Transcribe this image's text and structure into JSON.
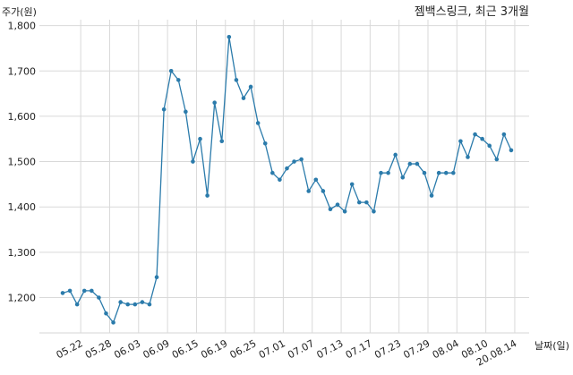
{
  "chart_data": {
    "type": "line",
    "title": "젬백스링크, 최근 3개월",
    "ylabel": "주가(원)",
    "xlabel": "날짜(일)",
    "ylim": [
      1120,
      1800
    ],
    "yticks": [
      1200,
      1300,
      1400,
      1500,
      1600,
      1700,
      1800
    ],
    "ytick_labels": [
      "1,200",
      "1,300",
      "1,400",
      "1,500",
      "1,600",
      "1,700",
      "1,800"
    ],
    "xtick_labels": [
      "05.22",
      "05.28",
      "06.03",
      "06.09",
      "06.15",
      "06.19",
      "06.25",
      "07.01",
      "07.07",
      "07.13",
      "07.17",
      "07.23",
      "07.29",
      "08.04",
      "08.10",
      "20.08.14"
    ],
    "xtick_index": [
      2,
      6,
      10,
      14,
      18,
      22,
      26,
      30,
      34,
      38,
      42,
      46,
      50,
      54,
      58,
      62
    ],
    "grid": true,
    "series": [
      {
        "name": "",
        "color": "#2b7bab",
        "values": [
          1210,
          1215,
          1185,
          1215,
          1215,
          1200,
          1165,
          1145,
          1190,
          1185,
          1185,
          1190,
          1185,
          1245,
          1615,
          1700,
          1680,
          1610,
          1500,
          1550,
          1425,
          1630,
          1545,
          1775,
          1680,
          1640,
          1665,
          1585,
          1540,
          1475,
          1460,
          1485,
          1500,
          1505,
          1435,
          1460,
          1435,
          1395,
          1405,
          1390,
          1450,
          1410,
          1410,
          1390,
          1475,
          1475,
          1515,
          1465,
          1495,
          1495,
          1475,
          1425,
          1475,
          1475,
          1475,
          1545,
          1510,
          1560,
          1550,
          1535,
          1505,
          1560,
          1525
        ]
      }
    ]
  }
}
